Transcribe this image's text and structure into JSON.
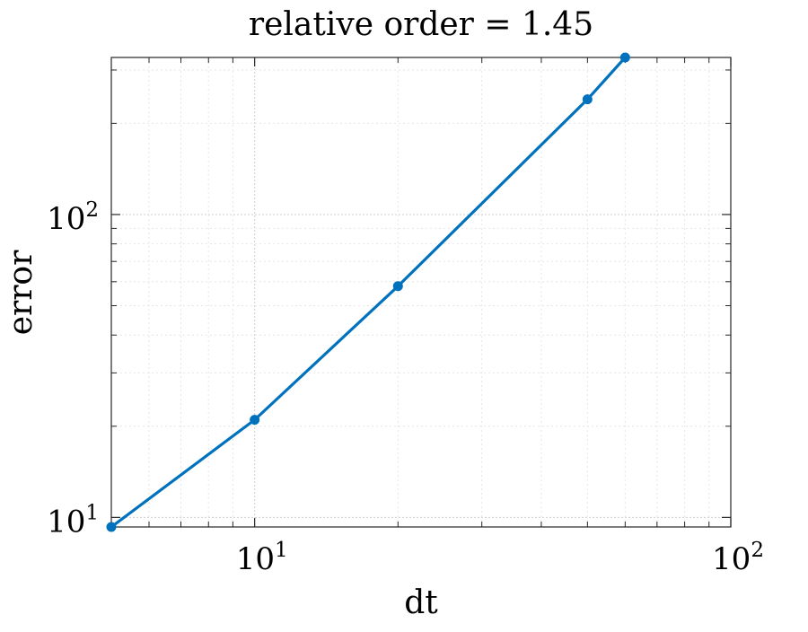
{
  "chart_data": {
    "type": "line",
    "title": "relative order = 1.45",
    "xlabel": "dt",
    "ylabel": "error",
    "x_scale": "log",
    "y_scale": "log",
    "xlim": [
      5,
      100
    ],
    "ylim": [
      9.3,
      330
    ],
    "grid": true,
    "x_ticks": [
      10,
      100
    ],
    "y_ticks": [
      10,
      100
    ],
    "x_tick_labels": [
      {
        "base": "10",
        "exp": "1"
      },
      {
        "base": "10",
        "exp": "2"
      }
    ],
    "y_tick_labels": [
      {
        "base": "10",
        "exp": "1"
      },
      {
        "base": "10",
        "exp": "2"
      }
    ],
    "series": [
      {
        "x": [
          5,
          10,
          20,
          50,
          60
        ],
        "y": [
          9.3,
          21,
          58,
          240,
          330
        ],
        "color": "#0072BD"
      }
    ]
  }
}
